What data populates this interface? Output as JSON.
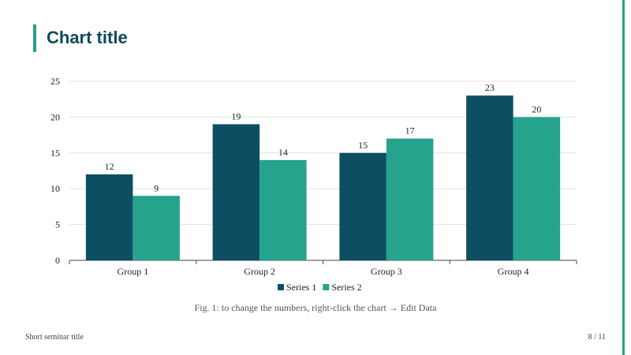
{
  "slide": {
    "title": "Chart title",
    "caption": "Fig. 1: to change the numbers, right-click the chart → Edit Data",
    "footer_title": "Short seminar title",
    "page_indicator": "8 / 11",
    "accent_color": "#26a28a",
    "title_color": "#0e4a5b"
  },
  "chart_data": {
    "type": "bar",
    "categories": [
      "Group 1",
      "Group 2",
      "Group 3",
      "Group 4"
    ],
    "series": [
      {
        "name": "Series 1",
        "values": [
          12,
          19,
          15,
          23
        ],
        "color": "#0d4e63"
      },
      {
        "name": "Series 2",
        "values": [
          9,
          14,
          17,
          20
        ],
        "color": "#26a38c"
      }
    ],
    "ylim": [
      0,
      25
    ],
    "yticks": [
      0,
      5,
      10,
      15,
      20,
      25
    ],
    "grid": true,
    "data_labels": true,
    "legend_position": "bottom"
  }
}
